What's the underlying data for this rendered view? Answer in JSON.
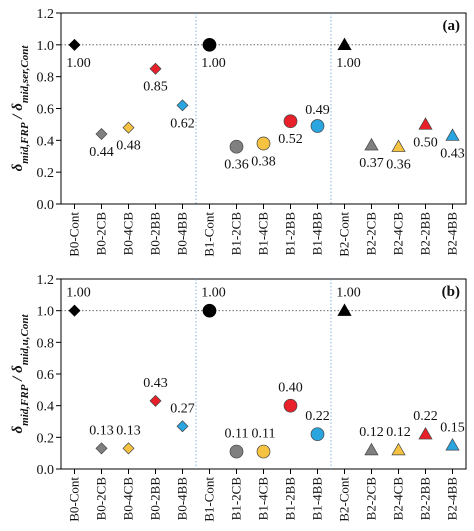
{
  "chart_data": [
    {
      "type": "scatter",
      "panel_label": "(a)",
      "ylabel_main": "δ",
      "ylabel_sub1": "mid,FRP",
      "ylabel_sep": " / δ",
      "ylabel_sub2": "mid,ser,Cont",
      "ylim": [
        0,
        1.2
      ],
      "yticks": [
        "0.0",
        "0.2",
        "0.4",
        "0.6",
        "0.8",
        "1.0",
        "1.2"
      ],
      "categories": [
        "B0-Cont",
        "B0-2CB",
        "B0-4CB",
        "B0-2BB",
        "B0-4BB",
        "B1-Cont",
        "B1-2CB",
        "B1-4CB",
        "B1-2BB",
        "B1-4BB",
        "B2-Cont",
        "B2-2CB",
        "B2-4CB",
        "B2-2BB",
        "B2-4BB"
      ],
      "values": [
        1.0,
        0.44,
        0.48,
        0.85,
        0.62,
        1.0,
        0.36,
        0.38,
        0.52,
        0.49,
        1.0,
        0.37,
        0.36,
        0.5,
        0.43
      ],
      "labels": [
        "1.00",
        "0.44",
        "0.48",
        "0.85",
        "0.62",
        "1.00",
        "0.36",
        "0.38",
        "0.52",
        "0.49",
        "1.00",
        "0.37",
        "0.36",
        "0.50",
        "0.43"
      ],
      "label_pos": [
        "below",
        "below",
        "below",
        "below",
        "below",
        "below",
        "below",
        "below",
        "below",
        "above",
        "below",
        "below",
        "below",
        "below",
        "below"
      ],
      "reference_line": 1.0,
      "grid": false
    },
    {
      "type": "scatter",
      "panel_label": "(b)",
      "ylabel_main": "δ",
      "ylabel_sub1": "mid,FRP",
      "ylabel_sep": " / δ",
      "ylabel_sub2": "mid,u,Cont",
      "ylim": [
        0,
        1.2
      ],
      "yticks": [
        "0.0",
        "0.2",
        "0.4",
        "0.6",
        "0.8",
        "1.0",
        "1.2"
      ],
      "categories": [
        "B0-Cont",
        "B0-2CB",
        "B0-4CB",
        "B0-2BB",
        "B0-4BB",
        "B1-Cont",
        "B1-2CB",
        "B1-4CB",
        "B1-2BB",
        "B1-4BB",
        "B2-Cont",
        "B2-2CB",
        "B2-4CB",
        "B2-2BB",
        "B2-4BB"
      ],
      "values": [
        1.0,
        0.13,
        0.13,
        0.43,
        0.27,
        1.0,
        0.11,
        0.11,
        0.4,
        0.22,
        1.0,
        0.12,
        0.12,
        0.22,
        0.15
      ],
      "labels": [
        "1.00",
        "0.13",
        "0.13",
        "0.43",
        "0.27",
        "1.00",
        "0.11",
        "0.11",
        "0.40",
        "0.22",
        "1.00",
        "0.12",
        "0.12",
        "0.22",
        "0.15"
      ],
      "label_pos": [
        "above",
        "above",
        "above",
        "above",
        "above",
        "above",
        "above",
        "above",
        "above",
        "above",
        "above",
        "above",
        "above",
        "above",
        "above"
      ],
      "reference_line": 1.0,
      "grid": false
    }
  ],
  "series_style": {
    "shapes": [
      "diamond",
      "diamond",
      "diamond",
      "diamond",
      "diamond",
      "circle",
      "circle",
      "circle",
      "circle",
      "circle",
      "triangle",
      "triangle",
      "triangle",
      "triangle",
      "triangle"
    ],
    "colors": [
      "#000000",
      "#808080",
      "#f5c242",
      "#e8202a",
      "#2aa5e0",
      "#000000",
      "#808080",
      "#f5c242",
      "#e8202a",
      "#2aa5e0",
      "#000000",
      "#808080",
      "#f5c242",
      "#e8202a",
      "#2aa5e0"
    ]
  }
}
